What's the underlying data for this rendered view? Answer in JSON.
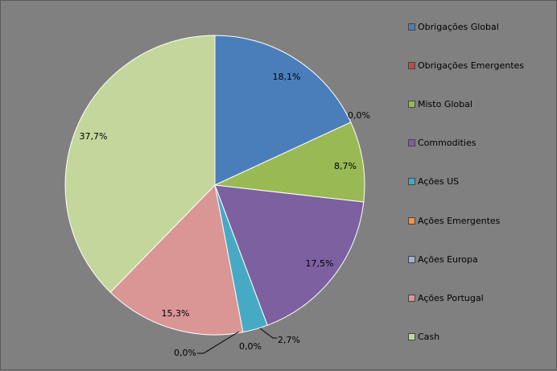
{
  "chart_data": {
    "type": "pie",
    "title": "",
    "categories": [
      "Obrigações Global",
      "Obrigações Emergentes",
      "Misto Global",
      "Commodities",
      "Ações US",
      "Ações Emergentes",
      "Ações Europa",
      "Ações Portugal",
      "Cash"
    ],
    "values": [
      18.1,
      0.0,
      8.7,
      17.5,
      2.7,
      0.0,
      0.0,
      15.3,
      37.7
    ],
    "labels": [
      "18,1%",
      "0,0%",
      "8,7%",
      "17,5%",
      "2,7%",
      "0,0%",
      "0,0%",
      "15,3%",
      "37,7%"
    ],
    "colors": [
      "#4a7ebb",
      "#be4b48",
      "#98b954",
      "#7d60a0",
      "#46aac5",
      "#f69240",
      "#9bb3d5",
      "#d99694",
      "#c3d69b"
    ],
    "legend_position": "right"
  }
}
